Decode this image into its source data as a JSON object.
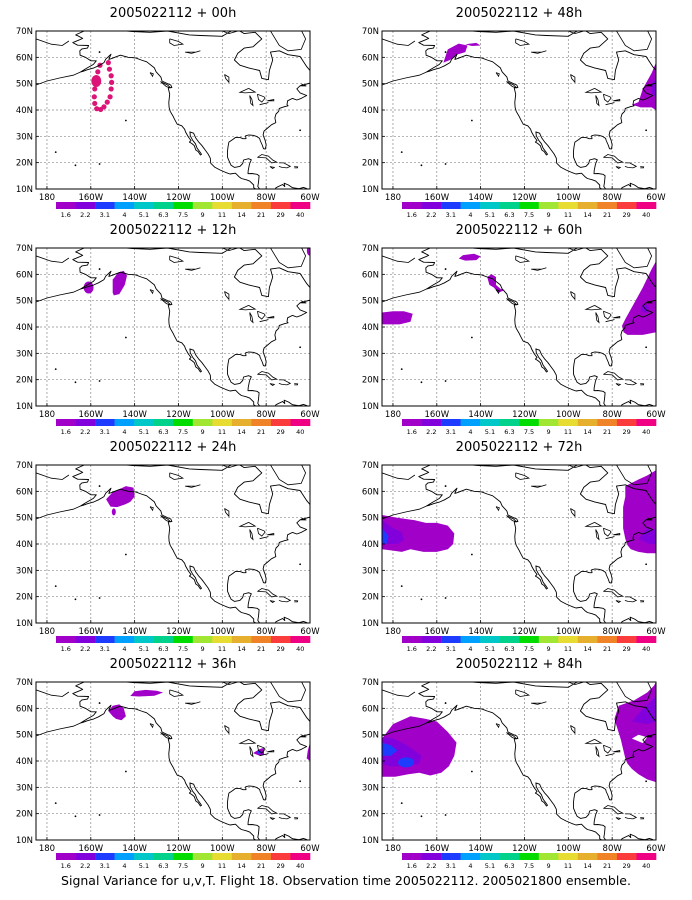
{
  "lat_labels": [
    "70N",
    "60N",
    "50N",
    "40N",
    "30N",
    "20N",
    "10N"
  ],
  "lon_labels": [
    "180",
    "160W",
    "140W",
    "120W",
    "100W",
    "80W",
    "60W"
  ],
  "colorbar": {
    "labels": [
      "1.6",
      "2.2",
      "3.1",
      "4",
      "5.1",
      "6.3",
      "7.5",
      "9",
      "11",
      "14",
      "21",
      "29",
      "40"
    ],
    "colors": [
      "#a000c8",
      "#8200dc",
      "#1e3cff",
      "#00a0ff",
      "#00c8c8",
      "#00d28c",
      "#00dc00",
      "#a0e632",
      "#e6dc32",
      "#e6af2d",
      "#f08228",
      "#fa3c3c",
      "#f00082"
    ]
  },
  "panels": [
    {
      "title": "2005022112 + 00h"
    },
    {
      "title": "2005022112 + 48h"
    },
    {
      "title": "2005022112 + 12h"
    },
    {
      "title": "2005022112 + 60h"
    },
    {
      "title": "2005022112 + 24h"
    },
    {
      "title": "2005022112 + 72h"
    },
    {
      "title": "2005022112 + 36h"
    },
    {
      "title": "2005022112 + 84h"
    }
  ],
  "caption": "Signal Variance for u,v,T. Flight 18. Observation time 2005022112. 2005021800 ensemble."
}
